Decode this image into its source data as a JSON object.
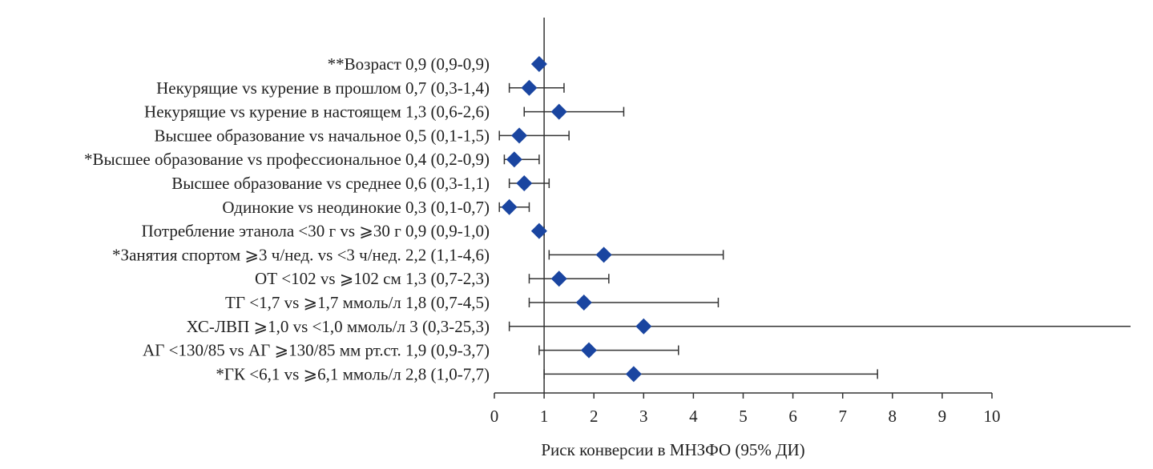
{
  "chart_data": {
    "type": "scatter",
    "subtype": "forest-plot",
    "title": "",
    "xlabel": "Риск конверсии в МНЗФО (95% ДИ)",
    "ylabel": "",
    "xlim": [
      0,
      10
    ],
    "x_ticks": [
      "0",
      "1",
      "2",
      "3",
      "4",
      "5",
      "6",
      "7",
      "8",
      "9",
      "10"
    ],
    "reference_line": 1,
    "grid": false,
    "legend": "none",
    "marker_color": "#1a45a0",
    "line_color": "#333333",
    "rows": [
      {
        "label": "**Возраст 0,9 (0,9-0,9)",
        "or": 0.9,
        "lo": 0.9,
        "hi": 0.9
      },
      {
        "label": "Некурящие vs курение в прошлом 0,7 (0,3-1,4)",
        "or": 0.7,
        "lo": 0.3,
        "hi": 1.4
      },
      {
        "label": "Некурящие vs курение в настоящем 1,3 (0,6-2,6)",
        "or": 1.3,
        "lo": 0.6,
        "hi": 2.6
      },
      {
        "label": "Высшее образование vs начальное 0,5 (0,1-1,5)",
        "or": 0.5,
        "lo": 0.1,
        "hi": 1.5
      },
      {
        "label": "*Высшее образование vs профессиональное 0,4 (0,2-0,9)",
        "or": 0.4,
        "lo": 0.2,
        "hi": 0.9
      },
      {
        "label": "Высшее образование vs среднее 0,6 (0,3-1,1)",
        "or": 0.6,
        "lo": 0.3,
        "hi": 1.1
      },
      {
        "label": "Одинокие vs неодинокие 0,3 (0,1-0,7)",
        "or": 0.3,
        "lo": 0.1,
        "hi": 0.7
      },
      {
        "label": "Потребление этанола <30 г vs ⩾30 г 0,9 (0,9-1,0)",
        "or": 0.9,
        "lo": 0.9,
        "hi": 1.0
      },
      {
        "label": "*Занятия спортом ⩾3 ч/нед. vs <3 ч/нед. 2,2 (1,1-4,6)",
        "or": 2.2,
        "lo": 1.1,
        "hi": 4.6
      },
      {
        "label": "ОТ <102 vs ⩾102 см 1,3 (0,7-2,3)",
        "or": 1.3,
        "lo": 0.7,
        "hi": 2.3
      },
      {
        "label": "ТГ <1,7 vs ⩾1,7 ммоль/л 1,8 (0,7-4,5)",
        "or": 1.8,
        "lo": 0.7,
        "hi": 4.5
      },
      {
        "label": "ХС-ЛВП ⩾1,0 vs <1,0 ммоль/л 3 (0,3-25,3)",
        "or": 3.0,
        "lo": 0.3,
        "hi": 25.3
      },
      {
        "label": "АГ <130/85 vs АГ ⩾130/85 мм рт.ст. 1,9 (0,9-3,7)",
        "or": 1.9,
        "lo": 0.9,
        "hi": 3.7
      },
      {
        "label": "*ГК <6,1 vs ⩾6,1 ммоль/л 2,8 (1,0-7,7)",
        "or": 2.8,
        "lo": 1.0,
        "hi": 7.7
      }
    ]
  }
}
